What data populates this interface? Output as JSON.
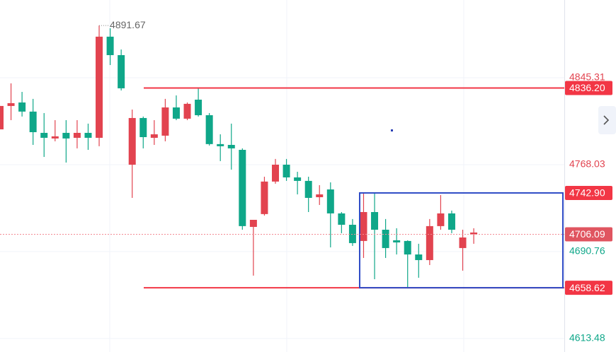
{
  "chart_data": {
    "type": "candlestick",
    "up_color": "#0fa789",
    "down_color": "#e2434f",
    "ylim": [
      4601.5,
      4914.4
    ],
    "yticks": [
      4845.31,
      4768.03,
      4690.76,
      4613.48
    ],
    "open": [
      4820.2,
      4822.7,
      4815.2,
      4796.9,
      4791.9,
      4793.2,
      4791.3,
      4796.3,
      4791.9,
      4881.8,
      4865.4,
      4835.9,
      4809.5,
      4792.5,
      4795.0,
      4818.9,
      4808.9,
      4822.1,
      4812.0,
      4786.3,
      4784.4,
      4782.5,
      4713.4,
      4719.0,
      4753.0,
      4768.0,
      4756.7,
      4753.6,
      4738.5,
      4741.6,
      4724.7,
      4714.6,
      4698.3,
      4725.9,
      4710.2,
      4693.9,
      4698.9,
      4688.2,
      4683.2,
      4713.4,
      4724.7,
      4710.2,
      4703.3,
      4707.7
    ],
    "high": [
      4820.2,
      4840.3,
      4832.7,
      4826.5,
      4813.9,
      4807.6,
      4807.6,
      4807.6,
      4804.5,
      4891.67,
      4889.3,
      4870.4,
      4817.0,
      4810.8,
      4807.6,
      4826.5,
      4829.6,
      4823.3,
      4835.9,
      4813.9,
      4795.0,
      4804.5,
      4782.5,
      4719.0,
      4757.3,
      4773.1,
      4773.1,
      4761.7,
      4757.3,
      4749.8,
      4752.3,
      4725.9,
      4719.7,
      4743.5,
      4743.5,
      4719.7,
      4711.5,
      4700.8,
      4697.7,
      4719.7,
      4741.0,
      4727.2,
      4710.2,
      4711.5
    ],
    "low": [
      4799.4,
      4807.6,
      4810.8,
      4785.6,
      4774.9,
      4788.8,
      4769.9,
      4782.5,
      4781.2,
      4784.4,
      4856.6,
      4834.0,
      4738.5,
      4782.5,
      4785.6,
      4788.8,
      4807.6,
      4807.6,
      4810.8,
      4785.0,
      4771.2,
      4763.6,
      4710.2,
      4669.4,
      4722.8,
      4751.1,
      4753.6,
      4741.6,
      4725.9,
      4732.2,
      4694.5,
      4707.1,
      4695.8,
      4685.1,
      4666.2,
      4685.1,
      4688.2,
      4659.3,
      4667.5,
      4678.8,
      4710.2,
      4707.1,
      4673.8,
      4697.7
    ],
    "close": [
      4799.4,
      4820.2,
      4823.3,
      4815.2,
      4796.3,
      4791.3,
      4796.3,
      4791.9,
      4796.3,
      4791.9,
      4881.8,
      4865.4,
      4768.0,
      4809.5,
      4791.9,
      4793.8,
      4818.9,
      4808.9,
      4825.8,
      4812.0,
      4786.3,
      4785.6,
      4781.2,
      4712.7,
      4724.1,
      4753.0,
      4768.0,
      4756.7,
      4753.6,
      4739.1,
      4746.0,
      4724.7,
      4714.6,
      4700.2,
      4725.9,
      4710.2,
      4700.8,
      4700.2,
      4688.2,
      4683.2,
      4713.4,
      4724.7,
      4693.9,
      4706.09
    ],
    "horizontal_lines": [
      {
        "value": 4836.2,
        "label": "4836.20"
      },
      4658.62
    ],
    "rectangle_top": {
      "value": 4742.9,
      "label": "4742.90"
    },
    "current_price": 4706.09
  }
}
